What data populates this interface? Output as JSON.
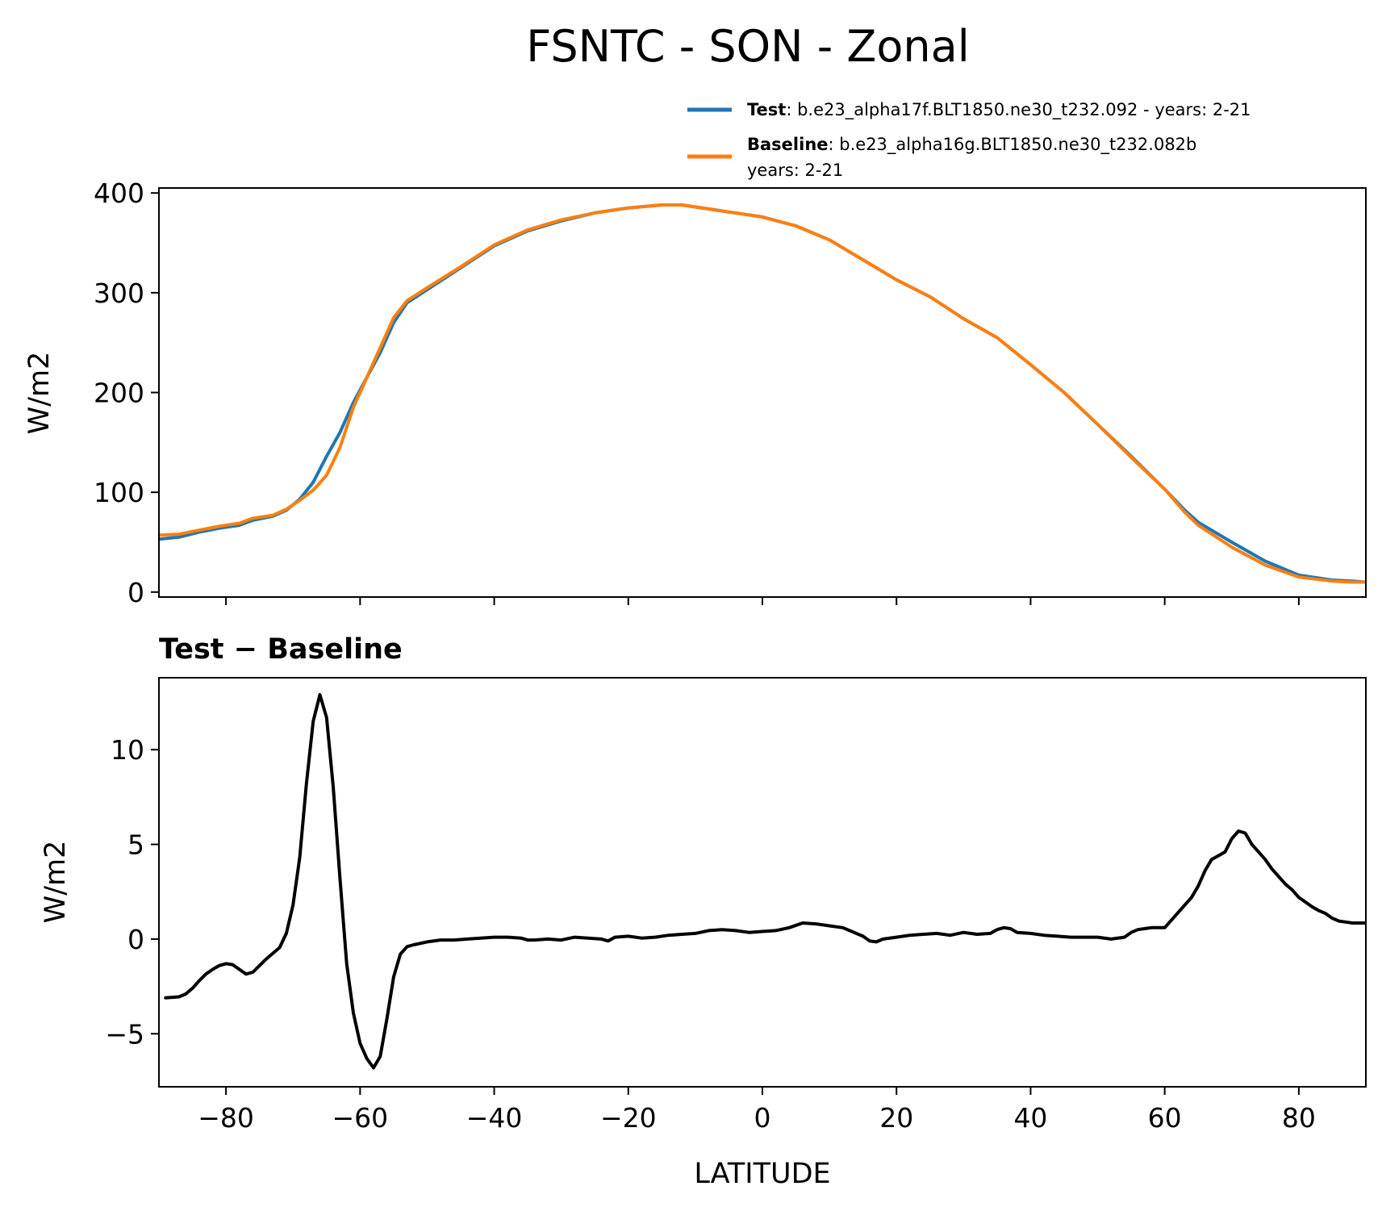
{
  "chart_data": [
    {
      "type": "line",
      "title": "FSNTC - SON - Zonal",
      "xlabel": "",
      "ylabel": "W/m2",
      "xlim": [
        -90,
        90
      ],
      "ylim": [
        -5,
        405
      ],
      "xticks": [
        -80,
        -60,
        -40,
        -20,
        0,
        20,
        40,
        60,
        80
      ],
      "yticks": [
        0,
        100,
        200,
        300,
        400
      ],
      "ytick_labels": [
        "0",
        "100",
        "200",
        "300",
        "400"
      ],
      "legend": {
        "position": "top-right",
        "entries": [
          {
            "bold": "Test",
            "text": ": b.e23_alpha17f.BLT1850.ne30_t232.092 - years: 2-21",
            "text2": ""
          },
          {
            "bold": "Baseline",
            "text": ": b.e23_alpha16g.BLT1850.ne30_t232.082b",
            "text2": "years: 2-21"
          }
        ]
      },
      "series": [
        {
          "name": "Test",
          "color": "#1f77b4",
          "x": [
            -90,
            -87,
            -84,
            -81,
            -78,
            -76,
            -73,
            -71,
            -69,
            -67,
            -65,
            -63,
            -61,
            -59,
            -57,
            -55,
            -53,
            -50,
            -45,
            -40,
            -35,
            -30,
            -25,
            -20,
            -15,
            -12,
            -10,
            -5,
            0,
            5,
            10,
            14,
            20,
            25,
            30,
            35,
            40,
            45,
            50,
            55,
            60,
            63,
            65,
            70,
            75,
            80,
            85,
            88,
            90
          ],
          "y": [
            53,
            55,
            60,
            64,
            67,
            72,
            76,
            82,
            93,
            110,
            136,
            160,
            190,
            215,
            240,
            270,
            290,
            303,
            325,
            347,
            362,
            372,
            380,
            385,
            388,
            388,
            386,
            381,
            376,
            367,
            353,
            337,
            313,
            296,
            274,
            255,
            228,
            200,
            168,
            136,
            103,
            82,
            70,
            50,
            31,
            17,
            12,
            11,
            10
          ]
        },
        {
          "name": "Baseline",
          "color": "#ff7f0e",
          "x": [
            -90,
            -87,
            -84,
            -81,
            -78,
            -76,
            -73,
            -71,
            -69,
            -67,
            -65,
            -63,
            -61,
            -59,
            -57,
            -55,
            -53,
            -50,
            -45,
            -40,
            -35,
            -30,
            -25,
            -20,
            -15,
            -12,
            -10,
            -5,
            0,
            5,
            10,
            14,
            20,
            25,
            30,
            35,
            40,
            45,
            50,
            55,
            60,
            63,
            65,
            70,
            75,
            80,
            85,
            88,
            90
          ],
          "y": [
            57,
            58,
            62,
            66,
            69,
            74,
            77,
            83,
            92,
            102,
            117,
            145,
            185,
            215,
            245,
            275,
            292,
            305,
            326,
            348,
            363,
            373,
            380,
            385,
            388,
            388,
            386,
            381,
            376,
            367,
            353,
            337,
            313,
            296,
            274,
            255,
            228,
            200,
            168,
            135,
            103,
            80,
            67,
            45,
            27,
            15,
            11,
            10,
            10
          ]
        }
      ]
    },
    {
      "type": "line",
      "title": "Test − Baseline",
      "xlabel": "LATITUDE",
      "ylabel": "W/m2",
      "xlim": [
        -90,
        90
      ],
      "ylim": [
        -7.8,
        13.8
      ],
      "xticks": [
        -80,
        -60,
        -40,
        -20,
        0,
        20,
        40,
        60,
        80
      ],
      "xtick_labels": [
        "−80",
        "−60",
        "−40",
        "−20",
        "0",
        "20",
        "40",
        "60",
        "80"
      ],
      "yticks": [
        -5,
        0,
        5,
        10
      ],
      "ytick_labels": [
        "−5",
        "0",
        "5",
        "10"
      ],
      "series": [
        {
          "name": "Test − Baseline",
          "color": "#000000",
          "x": [
            -89,
            -87,
            -86,
            -85,
            -84,
            -83,
            -82,
            -81,
            -80,
            -79,
            -78,
            -77,
            -76,
            -75,
            -74,
            -73,
            -72,
            -71,
            -70,
            -69,
            -68,
            -67,
            -66,
            -65,
            -64,
            -63,
            -62,
            -61,
            -60,
            -59,
            -58,
            -57,
            -56,
            -55,
            -54,
            -53,
            -52,
            -50,
            -48,
            -46,
            -44,
            -42,
            -40,
            -38,
            -36,
            -35,
            -34,
            -32,
            -30,
            -28,
            -26,
            -24,
            -23,
            -22,
            -20,
            -18,
            -16,
            -14,
            -12,
            -10,
            -8,
            -6,
            -4,
            -2,
            0,
            2,
            4,
            6,
            8,
            10,
            12,
            14,
            15,
            16,
            17,
            18,
            20,
            22,
            24,
            26,
            28,
            30,
            32,
            34,
            35,
            36,
            37,
            38,
            40,
            42,
            44,
            46,
            48,
            50,
            52,
            54,
            55,
            56,
            57,
            58,
            59,
            60,
            61,
            62,
            63,
            64,
            65,
            66,
            67,
            68,
            69,
            70,
            71,
            72,
            73,
            74,
            75,
            76,
            77,
            78,
            79,
            80,
            81,
            82,
            83,
            84,
            85,
            86,
            87,
            88,
            89,
            90
          ],
          "y": [
            -3.1,
            -3.05,
            -2.9,
            -2.6,
            -2.2,
            -1.85,
            -1.6,
            -1.4,
            -1.3,
            -1.35,
            -1.6,
            -1.85,
            -1.75,
            -1.4,
            -1.05,
            -0.75,
            -0.45,
            0.3,
            1.8,
            4.3,
            8.2,
            11.5,
            12.9,
            11.7,
            8.0,
            3.2,
            -1.3,
            -3.9,
            -5.5,
            -6.3,
            -6.8,
            -6.2,
            -4.2,
            -2.0,
            -0.8,
            -0.4,
            -0.3,
            -0.15,
            -0.05,
            -0.05,
            0.0,
            0.05,
            0.1,
            0.1,
            0.05,
            -0.05,
            -0.05,
            0.0,
            -0.05,
            0.1,
            0.05,
            0.0,
            -0.1,
            0.1,
            0.15,
            0.05,
            0.1,
            0.2,
            0.25,
            0.3,
            0.45,
            0.5,
            0.45,
            0.35,
            0.4,
            0.45,
            0.6,
            0.85,
            0.8,
            0.7,
            0.6,
            0.3,
            0.15,
            -0.1,
            -0.15,
            0.0,
            0.1,
            0.2,
            0.25,
            0.3,
            0.2,
            0.35,
            0.25,
            0.3,
            0.5,
            0.6,
            0.55,
            0.35,
            0.3,
            0.2,
            0.15,
            0.1,
            0.1,
            0.1,
            0.0,
            0.1,
            0.35,
            0.5,
            0.55,
            0.6,
            0.6,
            0.6,
            1.0,
            1.4,
            1.8,
            2.2,
            2.8,
            3.6,
            4.2,
            4.4,
            4.6,
            5.3,
            5.7,
            5.6,
            5.0,
            4.6,
            4.2,
            3.7,
            3.3,
            2.9,
            2.6,
            2.2,
            1.95,
            1.7,
            1.5,
            1.35,
            1.1,
            0.95,
            0.9,
            0.85,
            0.85,
            0.85
          ]
        }
      ]
    }
  ]
}
